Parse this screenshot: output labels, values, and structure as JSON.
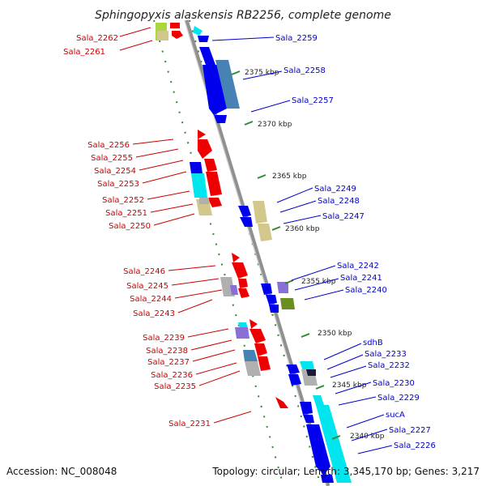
{
  "title": "Sphingopyxis alaskensis RB2256, complete genome",
  "footer": {
    "accession": "Accession: NC_008048",
    "summary": "Topology: circular; Length: 3,345,170 bp; Genes: 3,217"
  },
  "ticks": [
    {
      "label": "2375 kbp"
    },
    {
      "label": "2370 kbp"
    },
    {
      "label": "2365 kbp"
    },
    {
      "label": "2360 kbp"
    },
    {
      "label": "2355 kbp"
    },
    {
      "label": "2350 kbp"
    },
    {
      "label": "2345 kbp"
    },
    {
      "label": "2340 kbp"
    }
  ],
  "left_labels": [
    "Sala_2262",
    "Sala_2261",
    "Sala_2256",
    "Sala_2255",
    "Sala_2254",
    "Sala_2253",
    "Sala_2252",
    "Sala_2251",
    "Sala_2250",
    "Sala_2246",
    "Sala_2245",
    "Sala_2244",
    "Sala_2243",
    "Sala_2239",
    "Sala_2238",
    "Sala_2237",
    "Sala_2236",
    "Sala_2235",
    "Sala_2231"
  ],
  "right_labels": [
    "Sala_2259",
    "Sala_2258",
    "Sala_2257",
    "Sala_2249",
    "Sala_2248",
    "Sala_2247",
    "Sala_2242",
    "Sala_2241",
    "Sala_2240",
    "sdhB",
    "Sala_2233",
    "Sala_2232",
    "Sala_2230",
    "Sala_2229",
    "sucA",
    "Sala_2227",
    "Sala_2226"
  ],
  "colors": {
    "left_label": "#cc0000",
    "right_label": "#0000cc",
    "axis": "#808080",
    "dotted_ring": "#2e8b2e",
    "tick": "#2e8b2e",
    "forward_gene": "#ee0000",
    "reverse_gene": "#0000ee",
    "cyan_block": "#00e5ee",
    "steel_block": "#4682b4",
    "khaki_block": "#d2c88c",
    "grey_block": "#b0b0b0",
    "violet_block": "#8a6fd6",
    "olive_block": "#6b8e23",
    "yellowgreen_block": "#a8d83c"
  }
}
